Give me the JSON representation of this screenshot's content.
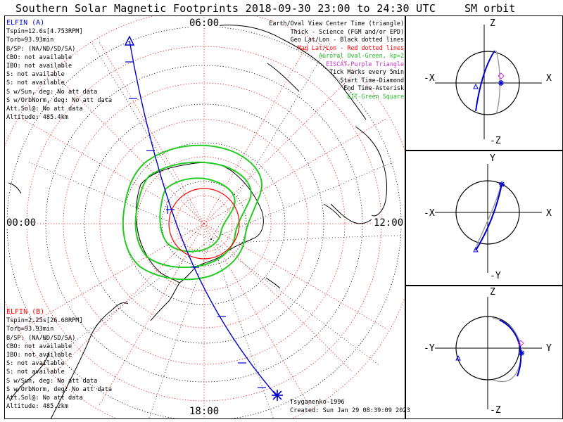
{
  "header": {
    "title": "Southern Solar Magnetic Footprints 2018-09-30 23:00 to 24:30 UTC",
    "orbit_title": "SM orbit"
  },
  "map": {
    "mlt_labels": {
      "top": "06:00",
      "left": "00:00",
      "right": "12:00",
      "bottom": "18:00"
    },
    "legend": [
      {
        "text": "Earth/Oval View Center Time (triangle)",
        "color": "#000000"
      },
      {
        "text": "Thick - Science (FGM and/or EPD)",
        "color": "#000000"
      },
      {
        "text": "Geo Lat/Lon - Black dotted lines",
        "color": "#000000"
      },
      {
        "text": "Mag Lat/Lon - Red dotted lines",
        "color": "#ff0000"
      },
      {
        "text": "Auroral Oval-Green, kp=2",
        "color": "#22bb22"
      },
      {
        "text": "EISCAT-Purple Triangle",
        "color": "#cc33cc"
      },
      {
        "text": "Tick Marks every 5min",
        "color": "#000000"
      },
      {
        "text": "Start Time-Diamond",
        "color": "#000000"
      },
      {
        "text": "End Time-Asterisk",
        "color": "#000000"
      },
      {
        "text": "EIT-Green Square",
        "color": "#22bb22"
      }
    ],
    "elfin_a": {
      "name": "ELFIN (A)",
      "color": "#0000cc",
      "lines": [
        "Tspin=12.6s[4.753RPM]",
        "Torb=93.93min",
        "B/SP: (NA/ND/SD/SA)",
        "CBO: not available",
        "IBO: not available",
        "S: not available",
        "S: not available",
        "S w/Sun, deg: No att data",
        "S w/OrbNorm, deg: No att data",
        "Att.Sol@: No att data",
        "Altitude: 485.4km"
      ]
    },
    "elfin_b": {
      "name": "ELFIN (B)",
      "color": "#ff0000",
      "lines": [
        "Tspin=2.25s[26.68RPM]",
        "Torb=93.93min",
        "B/SP: (NA/ND/SD/SA)",
        "CBO: not available",
        "IBO: not available",
        "S: not available",
        "S: not available",
        "S w/Sun, deg: No att data",
        "S w/OrbNorm, deg: No att data",
        "Att.Sol@: No att data",
        "Altitude: 485.2km"
      ]
    },
    "credit": "Tsyganenko-1996",
    "created": "Created: Sun Jan 29 08:39:09 2023"
  },
  "orbits": [
    {
      "top": "Z",
      "bottom": "-Z",
      "left": "-X",
      "right": "X"
    },
    {
      "top": "Y",
      "bottom": "-Y",
      "left": "-X",
      "right": "X"
    },
    {
      "top": "Z",
      "bottom": "-Z",
      "left": "-Y",
      "right": "Y"
    }
  ],
  "colors": {
    "track": "#0000cc",
    "mag_grid": "#ff0000",
    "geo_grid": "#000000",
    "oval": "#22cc22",
    "eiscat": "#cc33cc"
  }
}
